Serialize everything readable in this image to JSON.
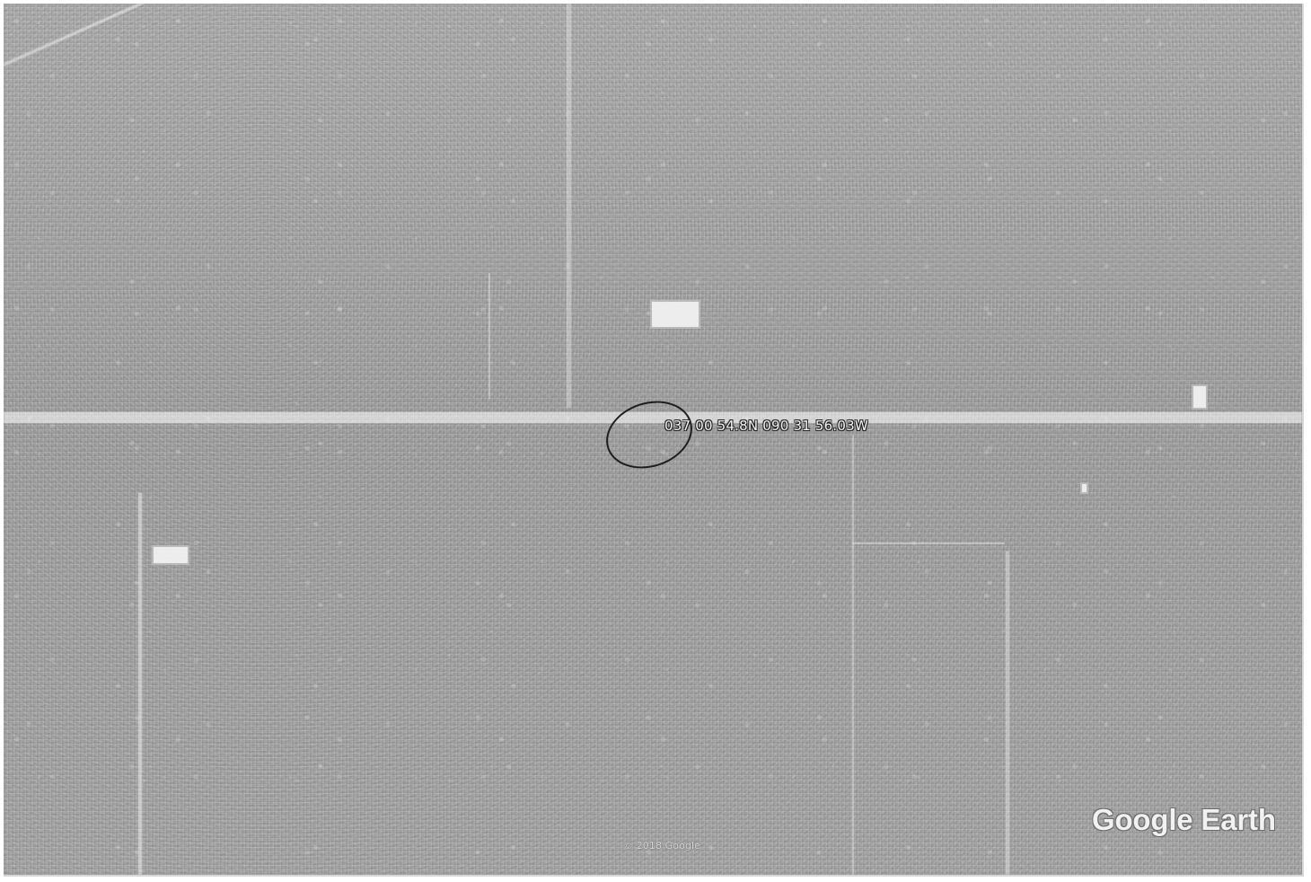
{
  "map": {
    "coordinate_text": "037 00 54.8N 090 31 56.03W",
    "copyright_text": "© 2018 Google",
    "watermark_text": "Google Earth",
    "marker_color": "#1d1d1d",
    "label_text_color": "#f7f7f7"
  }
}
